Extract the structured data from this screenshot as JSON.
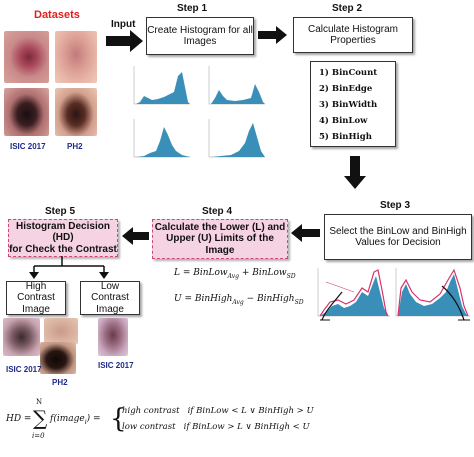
{
  "datasets_title": "Datasets",
  "input_label": "Input",
  "dataset_labels": {
    "isic_top": "ISIC 2017",
    "ph2_top": "PH2",
    "ph2_bottom": "PH2",
    "isic_bottom_left": "ISIC 2017",
    "isic_bottom_right": "ISIC 2017"
  },
  "steps": {
    "step1": {
      "label": "Step 1",
      "text": "Create Histogram for all\nImages"
    },
    "step2": {
      "label": "Step 2",
      "text": "Calculate Histogram\nProperties"
    },
    "step3": {
      "label": "Step 3",
      "text": "Select the BinLow and BinHigh\nValues for Decision"
    },
    "step4": {
      "label": "Step 4",
      "text": "Calculate the Lower (L) and\nUpper (U) Limits of the Image"
    },
    "step5": {
      "label": "Step 5",
      "text": "Histogram Decision (HD)\nfor Check the Contrast"
    }
  },
  "properties": [
    "1) BinCount",
    "2) BinEdge",
    "3) BinWidth",
    "4) BinLow",
    "5) BinHigh"
  ],
  "outcomes": {
    "high": "High Contrast\nImage",
    "low": "Low Contrast\nImage"
  },
  "colors": {
    "pink_fill": "#f6d3e2",
    "pink_border": "#d0457a",
    "hist_bar": "#3a8fb8",
    "envelope": "#d6336c"
  }
}
